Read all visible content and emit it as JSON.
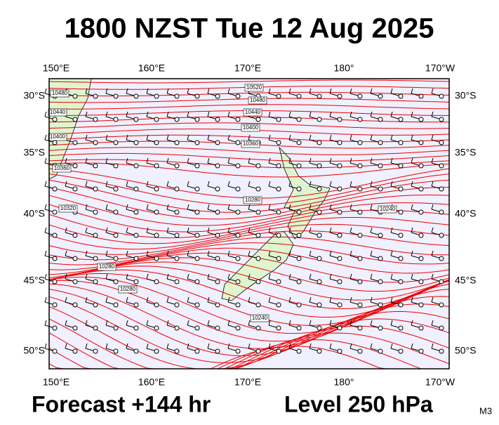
{
  "title": "1800 NZST Tue 12 Aug 2025",
  "axes": {
    "top": [
      "150°E",
      "160°E",
      "170°E",
      "180°",
      "170°W"
    ],
    "bottom": [
      "150°E",
      "160°E",
      "170°E",
      "180°",
      "170°W"
    ],
    "left": [
      "30°S",
      "35°S",
      "40°S",
      "45°S",
      "50°S"
    ],
    "right": [
      "30°S",
      "35°S",
      "40°S",
      "45°S",
      "50°S"
    ]
  },
  "contour_labels": [
    "10520",
    "10480",
    "10440",
    "10400",
    "10360",
    "10480",
    "10440",
    "10400",
    "10360",
    "10320",
    "10280",
    "10240",
    "10240",
    "10280",
    "10280"
  ],
  "footer": {
    "forecast": "Forecast +144 hr",
    "level": "Level 250 hPa",
    "code": "M3"
  }
}
